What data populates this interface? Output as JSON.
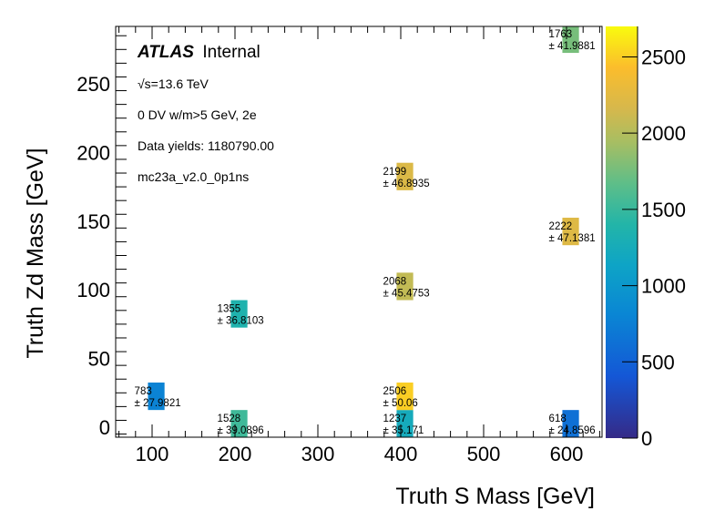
{
  "chart_data": {
    "type": "heatmap",
    "title": "",
    "xlabel": "Truth S Mass [GeV]",
    "ylabel": "Truth Zd Mass [GeV]",
    "xlim": [
      56,
      643
    ],
    "ylim": [
      -7.3,
      292
    ],
    "zlim": [
      0,
      2700
    ],
    "x_ticks": [
      100,
      200,
      300,
      400,
      500,
      600
    ],
    "y_ticks": [
      0,
      50,
      100,
      150,
      200,
      250
    ],
    "z_ticks": [
      0,
      500,
      1000,
      1500,
      2000,
      2500
    ],
    "bin_width_x": 20,
    "bin_width_y": 20,
    "colormap": "viridis-like (ROOT kBird)",
    "bins": [
      {
        "x": 105,
        "y": 22.5,
        "value": 783,
        "error": "27.9821"
      },
      {
        "x": 205,
        "y": 2.5,
        "value": 1528,
        "error": "39.0896"
      },
      {
        "x": 205,
        "y": 82.5,
        "value": 1355,
        "error": "36.8103"
      },
      {
        "x": 405,
        "y": 2.5,
        "value": 1237,
        "error": "35.171"
      },
      {
        "x": 405,
        "y": 22.5,
        "value": 2506,
        "error": "50.06"
      },
      {
        "x": 405,
        "y": 102.5,
        "value": 2068,
        "error": "45.4753"
      },
      {
        "x": 405,
        "y": 182.5,
        "value": 2199,
        "error": "46.8935"
      },
      {
        "x": 605,
        "y": 2.5,
        "value": 618,
        "error": "24.8596"
      },
      {
        "x": 605,
        "y": 142.5,
        "value": 2222,
        "error": "47.1381"
      },
      {
        "x": 605,
        "y": 282.5,
        "value": 1763,
        "error": "41.9881"
      }
    ],
    "grid": false,
    "legend": "none"
  },
  "annotations": {
    "atlas_label": "ATLAS",
    "atlas_status": "Internal",
    "energy": "√s=13.6 TeV",
    "selection": "0 DV w/m>5 GeV, 2e",
    "yields": "Data yields: 1180790.00",
    "sample": "mc23a_v2.0_0p1ns"
  },
  "error_prefix": "± "
}
